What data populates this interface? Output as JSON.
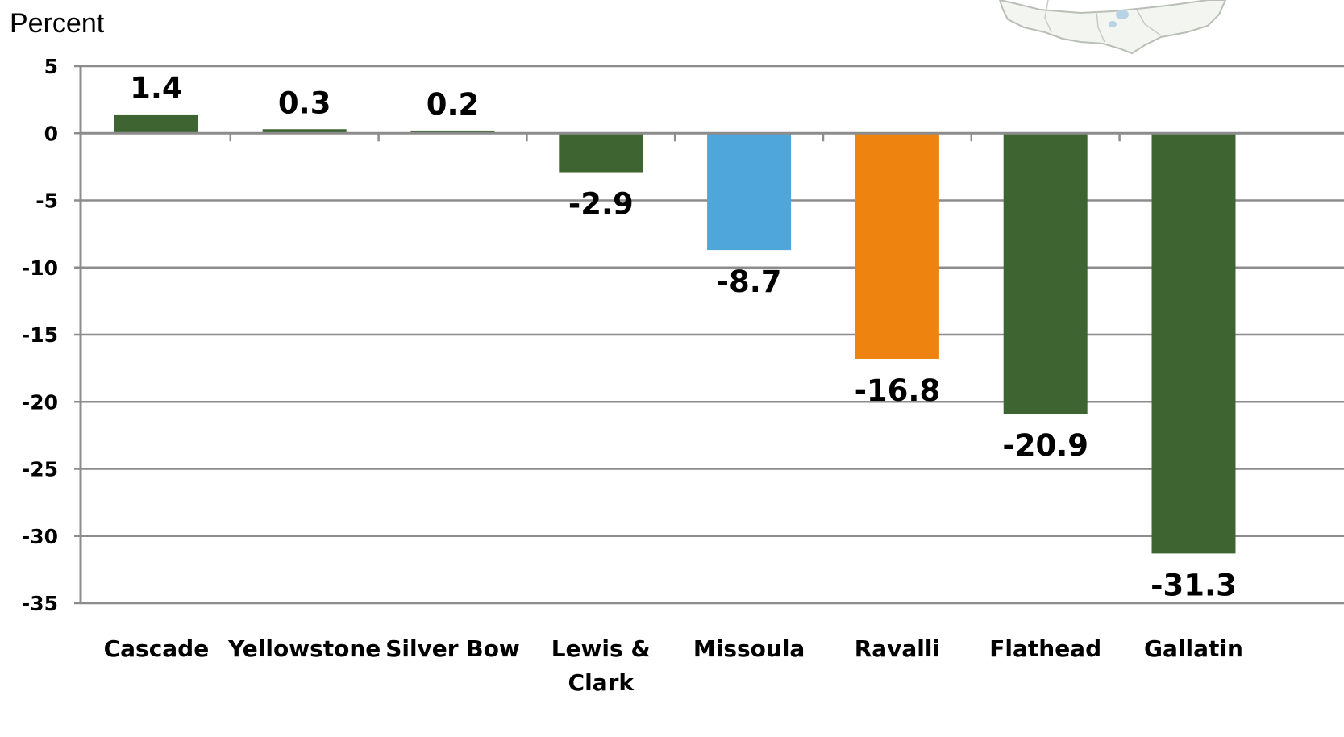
{
  "chart_data": {
    "type": "bar",
    "ylabel": "Percent",
    "ylim": [
      -35,
      5
    ],
    "yticks": [
      5,
      0,
      -5,
      -10,
      -15,
      -20,
      -25,
      -30,
      -35
    ],
    "grid": true,
    "legend": "none",
    "categories": [
      "Cascade",
      "Yellowstone",
      "Silver Bow",
      "Lewis & Clark",
      "Missoula",
      "Ravalli",
      "Flathead",
      "Gallatin"
    ],
    "category_lines": [
      [
        "Cascade"
      ],
      [
        "Yellowstone"
      ],
      [
        "Silver Bow"
      ],
      [
        "Lewis &",
        "Clark"
      ],
      [
        "Missoula"
      ],
      [
        "Ravalli"
      ],
      [
        "Flathead"
      ],
      [
        "Gallatin"
      ]
    ],
    "values": [
      1.4,
      0.3,
      0.2,
      -2.9,
      -8.7,
      -16.8,
      -20.9,
      -31.3
    ],
    "value_labels": [
      "1.4",
      "0.3",
      "0.2",
      "-2.9",
      "-8.7",
      "-16.8",
      "-20.9",
      "-31.3"
    ],
    "bar_colors": [
      "#3e6531",
      "#3e6531",
      "#3e6531",
      "#3e6531",
      "#4ea6da",
      "#ef830f",
      "#3e6531",
      "#3e6531"
    ],
    "colors": {
      "green": "#3e6531",
      "blue": "#4ea6da",
      "orange": "#ef830f",
      "grid": "#8c8c8c"
    }
  }
}
